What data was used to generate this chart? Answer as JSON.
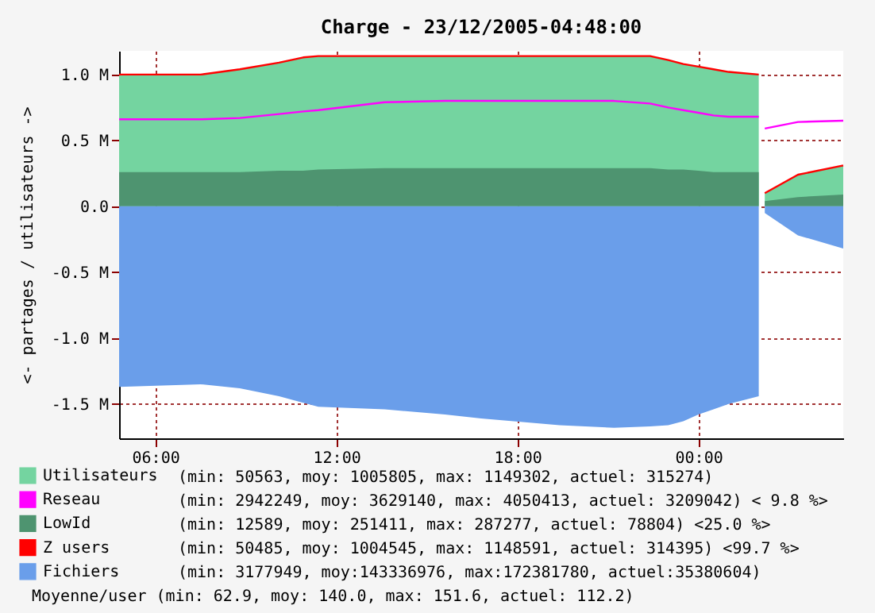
{
  "chart_data": {
    "type": "area",
    "title": "Charge - 23/12/2005-04:48:00",
    "ylabel": "<- partages / utilisateurs ->",
    "x": [
      4.8,
      7.5,
      8.8,
      10.1,
      10.9,
      11.4,
      13.6,
      15.6,
      16.8,
      19.4,
      21.2,
      22.4,
      23.0,
      23.5,
      24.0,
      24.5,
      25.0,
      26.0,
      26.1,
      26.2,
      27.3,
      28.8
    ],
    "series": [
      {
        "name": "Utilisateurs",
        "color": "#74d4a0",
        "values": [
          1000000,
          1000000,
          1040000,
          1090000,
          1130000,
          1140000,
          1140000,
          1140000,
          1140000,
          1140000,
          1140000,
          1140000,
          1110000,
          1080000,
          1060000,
          1040000,
          1020000,
          1000000,
          null,
          100000,
          240000,
          310000
        ]
      },
      {
        "name": "Reseau",
        "type": "line",
        "color": "#ff00ff",
        "values": [
          660000,
          660000,
          670000,
          700000,
          720000,
          730000,
          790000,
          800000,
          800000,
          800000,
          800000,
          780000,
          750000,
          730000,
          710000,
          690000,
          680000,
          680000,
          null,
          590000,
          640000,
          650000
        ]
      },
      {
        "name": "LowId",
        "color": "#4e9470",
        "values": [
          260000,
          260000,
          260000,
          270000,
          270000,
          280000,
          290000,
          290000,
          290000,
          290000,
          290000,
          290000,
          280000,
          280000,
          270000,
          260000,
          260000,
          260000,
          null,
          40000,
          70000,
          90000
        ]
      },
      {
        "name": "Z users",
        "type": "line",
        "color": "#ff0000",
        "values": [
          1000000,
          1000000,
          1040000,
          1090000,
          1130000,
          1140000,
          1140000,
          1140000,
          1140000,
          1140000,
          1140000,
          1140000,
          1110000,
          1080000,
          1060000,
          1040000,
          1020000,
          1000000,
          null,
          100000,
          240000,
          310000
        ]
      },
      {
        "name": "Fichiers",
        "color": "#6a9eea",
        "values": [
          -1370000,
          -1350000,
          -1380000,
          -1440000,
          -1490000,
          -1520000,
          -1540000,
          -1580000,
          -1610000,
          -1660000,
          -1680000,
          -1670000,
          -1660000,
          -1630000,
          -1580000,
          -1540000,
          -1500000,
          -1440000,
          null,
          -50000,
          -220000,
          -320000
        ]
      }
    ],
    "xlim": [
      4.8,
      28.8
    ],
    "xticks": [
      {
        "value": 6,
        "label": "06:00"
      },
      {
        "value": 12,
        "label": "12:00"
      },
      {
        "value": 18,
        "label": "18:00"
      },
      {
        "value": 24,
        "label": "00:00"
      }
    ],
    "ylim": [
      -1760000,
      1180000
    ],
    "yticks": [
      {
        "value": -1500000,
        "label": "-1.5 M"
      },
      {
        "value": -1000000,
        "label": "-1.0 M"
      },
      {
        "value": -500000,
        "label": "-0.5 M"
      },
      {
        "value": 0,
        "label": "0.0"
      },
      {
        "value": 500000,
        "label": "0.5 M"
      },
      {
        "value": 1000000,
        "label": "1.0 M"
      }
    ],
    "grid": true,
    "legend": "bottom",
    "annotations": [
      "(min: 50563, moy: 1005805, max: 1149302, actuel: 315274)",
      "(min: 2942249, moy: 3629140, max: 4050413, actuel: 3209042) < 9.8 %>",
      "(min: 12589, moy: 251411, max: 287277, actuel: 78804) <25.0 %>",
      "(min: 50485, moy: 1004545, max: 1148591, actuel: 314395) <99.7 %>",
      "(min: 3177949, moy:143336976, max:172381780, actuel:35380604)",
      "Moyenne/user (min: 62.9, moy: 140.0, max: 151.6, actuel: 112.2)"
    ]
  }
}
